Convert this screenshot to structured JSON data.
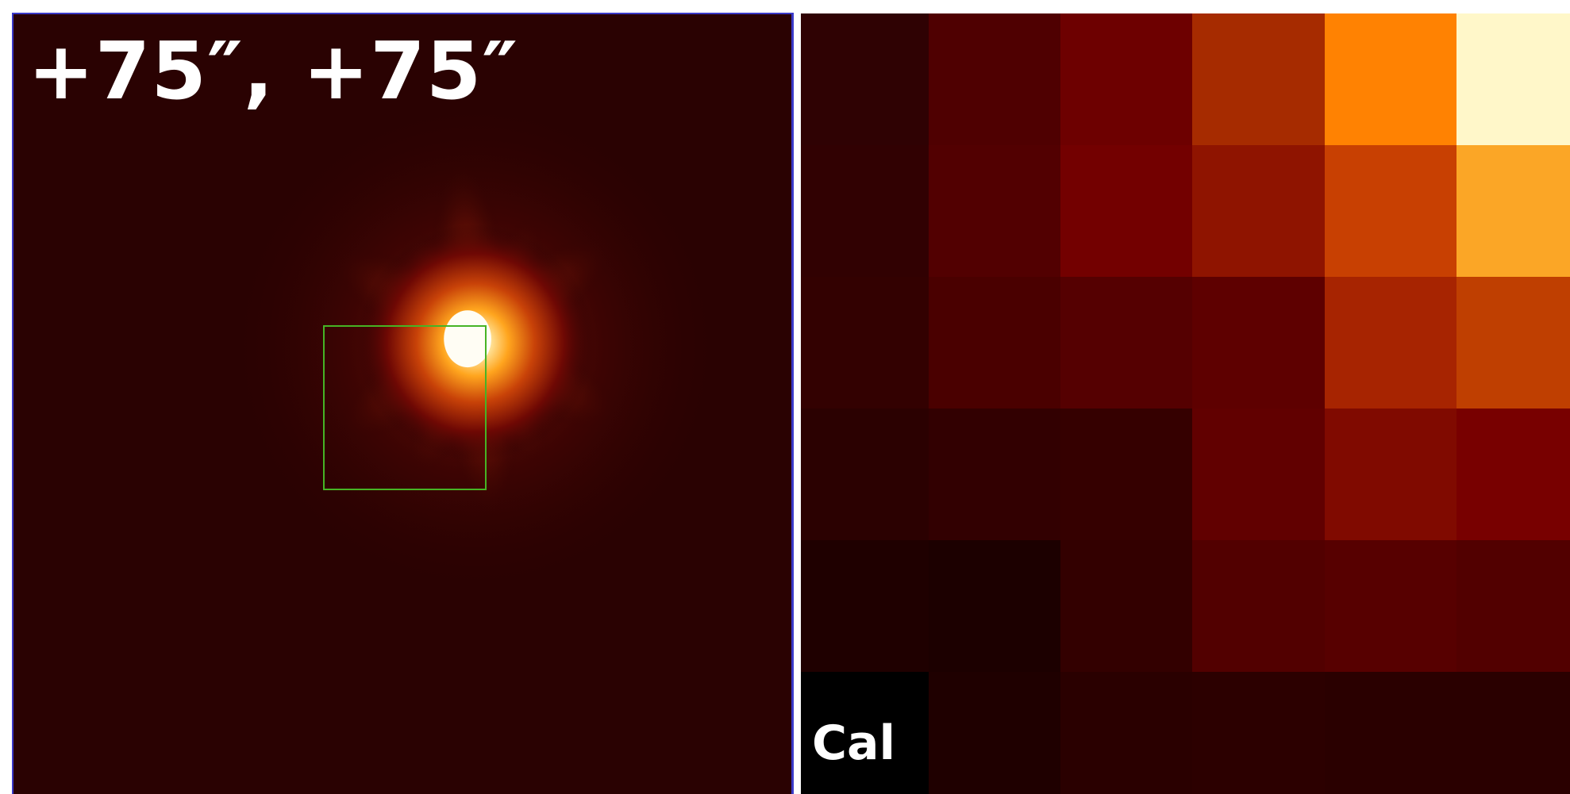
{
  "left_panel": {
    "label": "+75″, +75″",
    "background": "#2a0202",
    "frame_color": "#3a39c8",
    "box_color": "#46b425"
  },
  "right_panel": {
    "label": "Cal",
    "pixel_colors": [
      [
        "#2f0203",
        "#4f0001",
        "#6d0000",
        "#a62b00",
        "#ff8202",
        "#fff7c9"
      ],
      [
        "#310102",
        "#520001",
        "#730000",
        "#8f1400",
        "#c84002",
        "#fba626"
      ],
      [
        "#330101",
        "#4a0000",
        "#550001",
        "#5e0000",
        "#a72401",
        "#bf3f01"
      ],
      [
        "#2b0101",
        "#320001",
        "#350000",
        "#610000",
        "#800a00",
        "#780000"
      ],
      [
        "#1f0000",
        "#1c0000",
        "#330000",
        "#520000",
        "#570000",
        "#520000"
      ],
      [
        "#000000",
        "#1f0000",
        "#2a0000",
        "#2c0000",
        "#2a0000",
        "#2a0000"
      ]
    ]
  }
}
